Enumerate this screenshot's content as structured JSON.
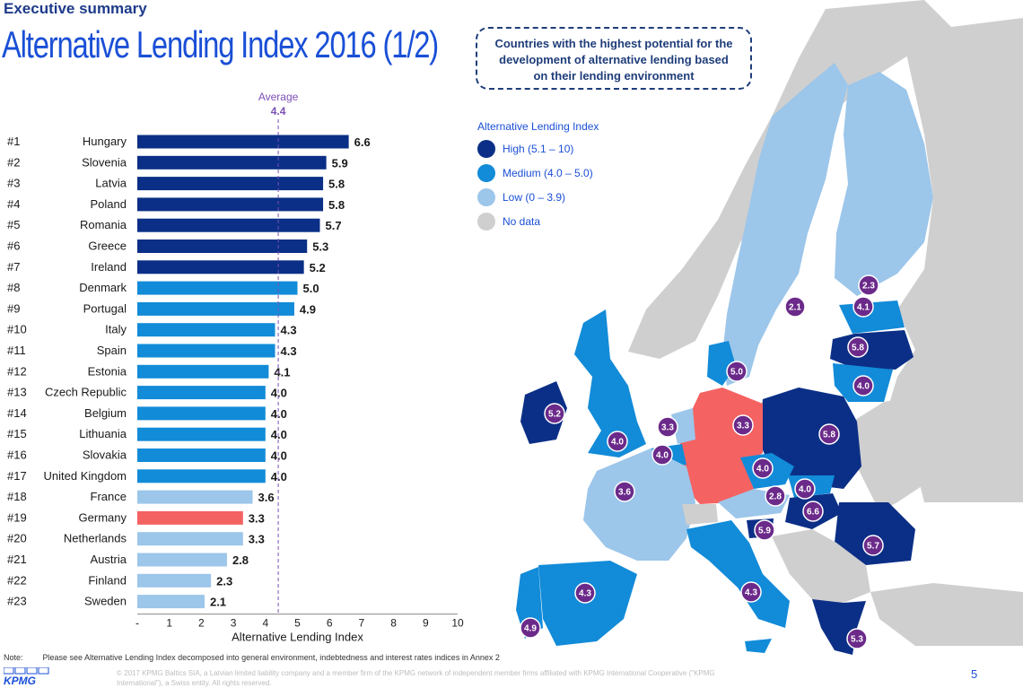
{
  "header": {
    "section": "Executive summary",
    "title": "Alternative Lending Index 2016 (1/2)"
  },
  "callout": {
    "line1": "Countries with the highest potential for the",
    "line2": "development of alternative lending based",
    "line3": "on their lending environment"
  },
  "legend": {
    "title": "Alternative Lending Index",
    "items": [
      {
        "label": "High (5.1 – 10)",
        "color": "#0b2f86"
      },
      {
        "label": "Medium (4.0 – 5.0)",
        "color": "#128bd8"
      },
      {
        "label": "Low (0 – 3.9)",
        "color": "#9cc6ea"
      },
      {
        "label": "No data",
        "color": "#cfcfcf"
      }
    ]
  },
  "chart_data": {
    "type": "bar",
    "orientation": "horizontal",
    "xlabel": "Alternative Lending Index",
    "xlim": [
      0,
      10
    ],
    "x_ticks": [
      "-",
      "1",
      "2",
      "3",
      "4",
      "5",
      "6",
      "7",
      "8",
      "9",
      "10"
    ],
    "average": {
      "label": "Average",
      "value": 4.4,
      "value_label": "4.4"
    },
    "colors": {
      "high": "#0b2f86",
      "medium": "#128bd8",
      "low": "#9cc6ea",
      "highlight": "#f56262"
    },
    "bars": [
      {
        "rank": "#1",
        "country": "Hungary",
        "value": 6.6,
        "label": "6.6",
        "tier": "high"
      },
      {
        "rank": "#2",
        "country": "Slovenia",
        "value": 5.9,
        "label": "5.9",
        "tier": "high"
      },
      {
        "rank": "#3",
        "country": "Latvia",
        "value": 5.8,
        "label": "5.8",
        "tier": "high"
      },
      {
        "rank": "#4",
        "country": "Poland",
        "value": 5.8,
        "label": "5.8",
        "tier": "high"
      },
      {
        "rank": "#5",
        "country": "Romania",
        "value": 5.7,
        "label": "5.7",
        "tier": "high"
      },
      {
        "rank": "#6",
        "country": "Greece",
        "value": 5.3,
        "label": "5.3",
        "tier": "high"
      },
      {
        "rank": "#7",
        "country": "Ireland",
        "value": 5.2,
        "label": "5.2",
        "tier": "high"
      },
      {
        "rank": "#8",
        "country": "Denmark",
        "value": 5.0,
        "label": "5.0",
        "tier": "medium"
      },
      {
        "rank": "#9",
        "country": "Portugal",
        "value": 4.9,
        "label": "4.9",
        "tier": "medium"
      },
      {
        "rank": "#10",
        "country": "Italy",
        "value": 4.3,
        "label": "4.3",
        "tier": "medium"
      },
      {
        "rank": "#11",
        "country": "Spain",
        "value": 4.3,
        "label": "4.3",
        "tier": "medium"
      },
      {
        "rank": "#12",
        "country": "Estonia",
        "value": 4.1,
        "label": "4.1",
        "tier": "medium"
      },
      {
        "rank": "#13",
        "country": "Czech Republic",
        "value": 4.0,
        "label": "4.0",
        "tier": "medium"
      },
      {
        "rank": "#14",
        "country": "Belgium",
        "value": 4.0,
        "label": "4.0",
        "tier": "medium"
      },
      {
        "rank": "#15",
        "country": "Lithuania",
        "value": 4.0,
        "label": "4.0",
        "tier": "medium"
      },
      {
        "rank": "#16",
        "country": "Slovakia",
        "value": 4.0,
        "label": "4.0",
        "tier": "medium"
      },
      {
        "rank": "#17",
        "country": "United Kingdom",
        "value": 4.0,
        "label": "4.0",
        "tier": "medium"
      },
      {
        "rank": "#18",
        "country": "France",
        "value": 3.6,
        "label": "3.6",
        "tier": "low"
      },
      {
        "rank": "#19",
        "country": "Germany",
        "value": 3.3,
        "label": "3.3",
        "tier": "highlight"
      },
      {
        "rank": "#20",
        "country": "Netherlands",
        "value": 3.3,
        "label": "3.3",
        "tier": "low"
      },
      {
        "rank": "#21",
        "country": "Austria",
        "value": 2.8,
        "label": "2.8",
        "tier": "low"
      },
      {
        "rank": "#22",
        "country": "Finland",
        "value": 2.3,
        "label": "2.3",
        "tier": "low"
      },
      {
        "rank": "#23",
        "country": "Sweden",
        "value": 2.1,
        "label": "2.1",
        "tier": "low"
      }
    ]
  },
  "map": {
    "badge_color": "#6b2a8a",
    "badges": [
      {
        "name": "finland",
        "label": "2.3"
      },
      {
        "name": "sweden",
        "label": "2.1"
      },
      {
        "name": "estonia",
        "label": "4.1"
      },
      {
        "name": "latvia",
        "label": "5.8"
      },
      {
        "name": "lithuania",
        "label": "4.0"
      },
      {
        "name": "denmark",
        "label": "5.0"
      },
      {
        "name": "ireland",
        "label": "5.2"
      },
      {
        "name": "united-kingdom",
        "label": "4.0"
      },
      {
        "name": "netherlands",
        "label": "3.3"
      },
      {
        "name": "belgium",
        "label": "4.0"
      },
      {
        "name": "germany",
        "label": "3.3"
      },
      {
        "name": "poland",
        "label": "5.8"
      },
      {
        "name": "czech-republic",
        "label": "4.0"
      },
      {
        "name": "slovakia",
        "label": "4.0"
      },
      {
        "name": "austria",
        "label": "2.8"
      },
      {
        "name": "hungary",
        "label": "6.6"
      },
      {
        "name": "slovenia",
        "label": "5.9"
      },
      {
        "name": "romania",
        "label": "5.7"
      },
      {
        "name": "france",
        "label": "3.6"
      },
      {
        "name": "italy",
        "label": "4.3"
      },
      {
        "name": "spain",
        "label": "4.3"
      },
      {
        "name": "portugal",
        "label": "4.9"
      },
      {
        "name": "greece",
        "label": "5.3"
      }
    ]
  },
  "footer": {
    "note_label": "Note:",
    "note_text": "Please see Alternative Lending Index decomposed into general environment, indebtedness and interest rates indices in Annex 2",
    "copyright_line1": "© 2017 KPMG Baltics SIA, a Latvian limited liability company and a member firm of the KPMG network of independent member firms affiliated with KPMG International Cooperative (\"KPMG",
    "copyright_line2": "International\"), a Swiss entity. All rights reserved.",
    "logo": "KPMG",
    "page_number": "5"
  }
}
